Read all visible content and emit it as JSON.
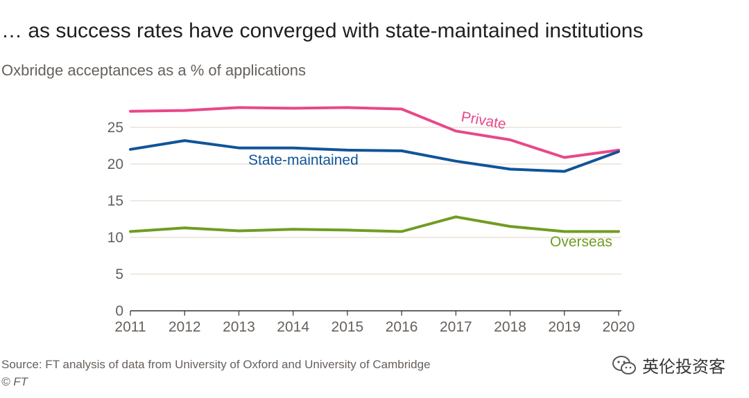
{
  "header": {
    "title": "… as success rates have converged with state-maintained institutions",
    "subtitle": "Oxbridge acceptances as a % of applications"
  },
  "footer": {
    "source": "Source: FT analysis of data from University of Oxford and University of Cambridge",
    "copyright": "© FT"
  },
  "watermark": {
    "text": "英伦投资客",
    "icon": "wechat-icon"
  },
  "colors": {
    "private": "#e8488a",
    "state": "#0f5499",
    "overseas": "#709c21",
    "grid": "#e6d9ce",
    "axis": "#33302e"
  },
  "chart_data": {
    "type": "line",
    "title": "… as success rates have converged with state-maintained institutions",
    "subtitle": "Oxbridge acceptances as a % of applications",
    "x": [
      2011,
      2012,
      2013,
      2014,
      2015,
      2016,
      2017,
      2018,
      2019,
      2020
    ],
    "x_tick_labels": [
      "2011",
      "2012",
      "2013",
      "2014",
      "2015",
      "2016",
      "2017",
      "2018",
      "2019",
      "2020"
    ],
    "y_ticks": [
      0,
      5,
      10,
      15,
      20,
      25
    ],
    "y_tick_labels": [
      "0",
      "5",
      "10",
      "15",
      "20",
      "25"
    ],
    "ylim": [
      0,
      28
    ],
    "grid": "horizontal",
    "series": [
      {
        "name": "Private",
        "color": "#e8488a",
        "values": [
          27.2,
          27.3,
          27.7,
          27.6,
          27.7,
          27.5,
          24.5,
          23.3,
          20.9,
          21.9
        ]
      },
      {
        "name": "State-maintained",
        "color": "#0f5499",
        "values": [
          22.0,
          23.2,
          22.2,
          22.2,
          21.9,
          21.8,
          20.4,
          19.3,
          19.0,
          21.7
        ]
      },
      {
        "name": "Overseas",
        "color": "#709c21",
        "values": [
          10.8,
          11.3,
          10.9,
          11.1,
          11.0,
          10.8,
          12.8,
          11.5,
          10.8,
          10.8
        ]
      }
    ]
  }
}
